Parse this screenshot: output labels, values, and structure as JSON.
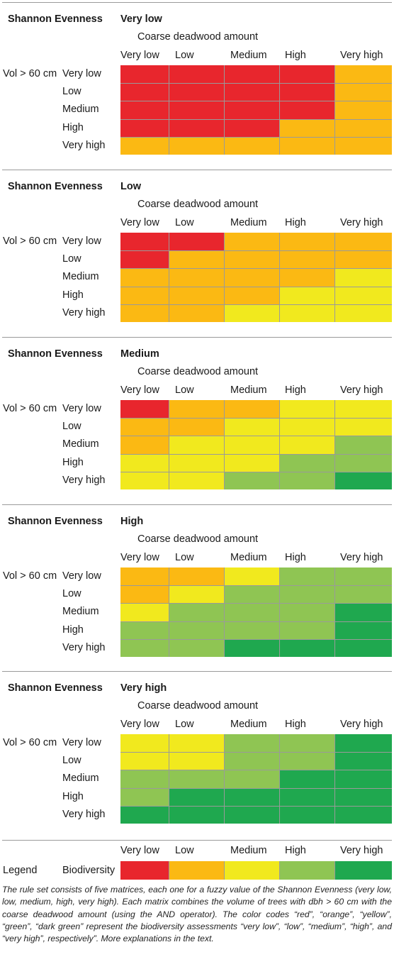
{
  "chart_data": [
    {
      "type": "heatmap",
      "title_label": "Shannon Evenness",
      "title_value": "Very low",
      "xlabel": "Coarse deadwood amount",
      "ylabel": "Vol > 60 cm",
      "x_categories": [
        "Very low",
        "Low",
        "Medium",
        "High",
        "Very high"
      ],
      "y_categories": [
        "Very low",
        "Low",
        "Medium",
        "High",
        "Very high"
      ],
      "values": [
        [
          "very low",
          "very low",
          "very low",
          "very low",
          "low"
        ],
        [
          "very low",
          "very low",
          "very low",
          "very low",
          "low"
        ],
        [
          "very low",
          "very low",
          "very low",
          "very low",
          "low"
        ],
        [
          "very low",
          "very low",
          "very low",
          "low",
          "low"
        ],
        [
          "low",
          "low",
          "low",
          "low",
          "low"
        ]
      ]
    },
    {
      "type": "heatmap",
      "title_label": "Shannon Evenness",
      "title_value": "Low",
      "xlabel": "Coarse deadwood amount",
      "ylabel": "Vol > 60 cm",
      "x_categories": [
        "Very low",
        "Low",
        "Medium",
        "High",
        "Very high"
      ],
      "y_categories": [
        "Very low",
        "Low",
        "Medium",
        "High",
        "Very high"
      ],
      "values": [
        [
          "very low",
          "very low",
          "low",
          "low",
          "low"
        ],
        [
          "very low",
          "low",
          "low",
          "low",
          "low"
        ],
        [
          "low",
          "low",
          "low",
          "low",
          "medium"
        ],
        [
          "low",
          "low",
          "low",
          "medium",
          "medium"
        ],
        [
          "low",
          "low",
          "medium",
          "medium",
          "medium"
        ]
      ]
    },
    {
      "type": "heatmap",
      "title_label": "Shannon Evenness",
      "title_value": "Medium",
      "xlabel": "Coarse deadwood amount",
      "ylabel": "Vol > 60 cm",
      "x_categories": [
        "Very low",
        "Low",
        "Medium",
        "High",
        "Very high"
      ],
      "y_categories": [
        "Very low",
        "Low",
        "Medium",
        "High",
        "Very high"
      ],
      "values": [
        [
          "very low",
          "low",
          "low",
          "medium",
          "medium"
        ],
        [
          "low",
          "low",
          "medium",
          "medium",
          "medium"
        ],
        [
          "low",
          "medium",
          "medium",
          "medium",
          "high"
        ],
        [
          "medium",
          "medium",
          "medium",
          "high",
          "high"
        ],
        [
          "medium",
          "medium",
          "high",
          "high",
          "very high"
        ]
      ]
    },
    {
      "type": "heatmap",
      "title_label": "Shannon Evenness",
      "title_value": "High",
      "xlabel": "Coarse deadwood amount",
      "ylabel": "Vol > 60 cm",
      "x_categories": [
        "Very low",
        "Low",
        "Medium",
        "High",
        "Very high"
      ],
      "y_categories": [
        "Very low",
        "Low",
        "Medium",
        "High",
        "Very high"
      ],
      "values": [
        [
          "low",
          "low",
          "medium",
          "high",
          "high"
        ],
        [
          "low",
          "medium",
          "high",
          "high",
          "high"
        ],
        [
          "medium",
          "high",
          "high",
          "high",
          "very high"
        ],
        [
          "high",
          "high",
          "high",
          "high",
          "very high"
        ],
        [
          "high",
          "high",
          "very high",
          "very high",
          "very high"
        ]
      ]
    },
    {
      "type": "heatmap",
      "title_label": "Shannon Evenness",
      "title_value": "Very high",
      "xlabel": "Coarse deadwood amount",
      "ylabel": "Vol > 60 cm",
      "x_categories": [
        "Very low",
        "Low",
        "Medium",
        "High",
        "Very high"
      ],
      "y_categories": [
        "Very low",
        "Low",
        "Medium",
        "High",
        "Very high"
      ],
      "values": [
        [
          "medium",
          "medium",
          "high",
          "high",
          "very high"
        ],
        [
          "medium",
          "medium",
          "high",
          "high",
          "very high"
        ],
        [
          "high",
          "high",
          "high",
          "very high",
          "very high"
        ],
        [
          "high",
          "very high",
          "very high",
          "very high",
          "very high"
        ],
        [
          "very high",
          "very high",
          "very high",
          "very high",
          "very high"
        ]
      ]
    }
  ],
  "legend": {
    "label": "Legend",
    "sublabel": "Biodiversity",
    "categories": [
      "Very low",
      "Low",
      "Medium",
      "High",
      "Very high"
    ],
    "levels": [
      "very low",
      "low",
      "medium",
      "high",
      "very high"
    ]
  },
  "colors": {
    "very low": "#e8262d",
    "low": "#fbb913",
    "medium": "#f1e91e",
    "high": "#8fc553",
    "very high": "#1fa84f"
  },
  "caption": "The rule set consists of five matrices, each one for a fuzzy value of the Shannon Evenness (very low, low, medium, high, very high). Each matrix combines the volume of trees with dbh > 60 cm with the coarse deadwood amount (using the AND operator). The color codes “red”, “orange”, “yellow”, “green”, “dark green” represent the biodiversity assessments “very low”, “low”, “medium”, “high”, and “very high”, respectively”. More explanations in the text."
}
